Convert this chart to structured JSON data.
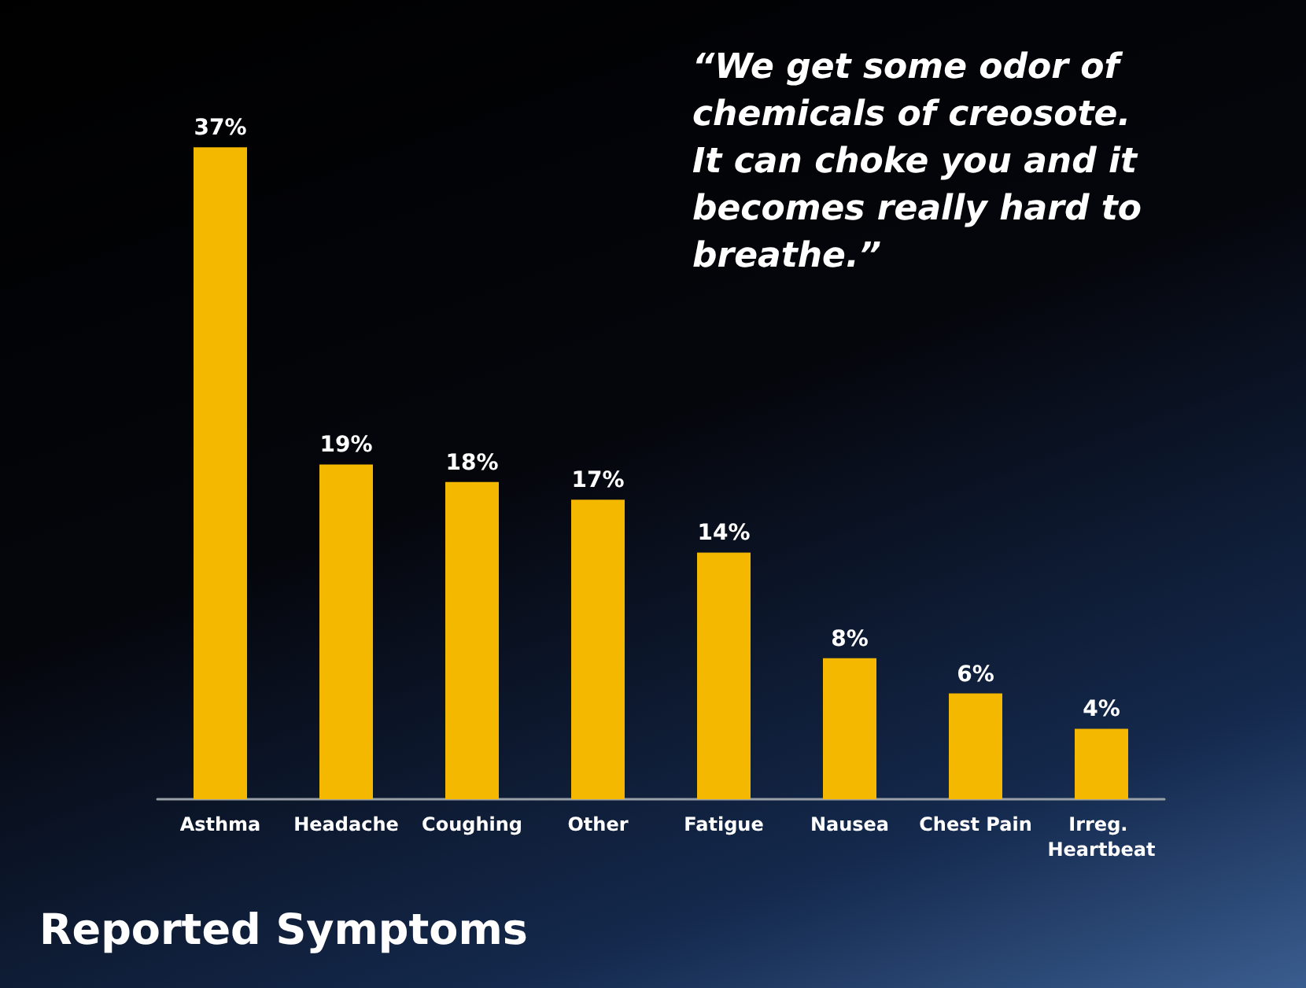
{
  "chart_data": {
    "type": "bar",
    "title": "Reported Symptoms",
    "categories": [
      "Asthma",
      "Headache",
      "Coughing",
      "Other",
      "Fatigue",
      "Nausea",
      "Chest Pain",
      "Irreg. Heartbeat"
    ],
    "values": [
      37,
      19,
      18,
      17,
      14,
      8,
      6,
      4
    ],
    "value_labels": [
      "37%",
      "19%",
      "18%",
      "17%",
      "14%",
      "8%",
      "6%",
      "4%"
    ],
    "color": "#f5b800",
    "annotations": [
      "“We get some odor of chemicals of creosote. It can choke you and it becomes really hard to breathe.”"
    ],
    "tick_labels": "x",
    "grid": false
  }
}
